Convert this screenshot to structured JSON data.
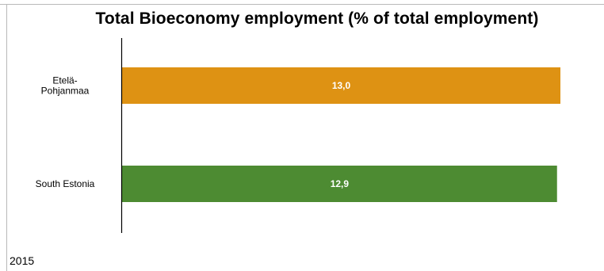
{
  "chart_data": {
    "type": "bar",
    "orientation": "horizontal",
    "title": "Total Bioeconomy employment (% of total employment)",
    "categories": [
      [
        "Etelä-",
        "Pohjanmaa"
      ],
      [
        "South Estonia"
      ]
    ],
    "values": [
      13.0,
      12.9
    ],
    "value_labels": [
      "13,0",
      "12,9"
    ],
    "colors": [
      "#de9213",
      "#4d8b32"
    ],
    "xlim": [
      0,
      13
    ],
    "grid": false,
    "legend": "none"
  },
  "footer": {
    "year": "2015"
  }
}
